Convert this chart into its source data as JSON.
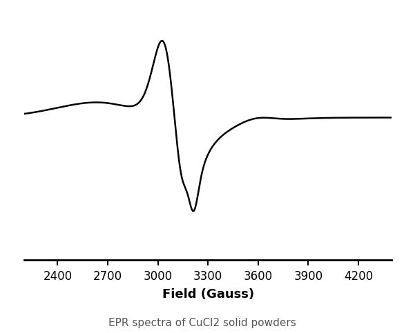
{
  "xlabel": "Field (Gauss)",
  "subtitle": "EPR spectra of CuCl2 solid powders",
  "xlim": [
    2200,
    4400
  ],
  "ylim": [
    -1.85,
    1.4
  ],
  "xticks": [
    2400,
    2700,
    3000,
    3300,
    3600,
    3900,
    4200
  ],
  "line_color": "#000000",
  "line_width": 1.8,
  "background_color": "#ffffff",
  "xlabel_fontsize": 13,
  "xlabel_fontweight": "bold",
  "xtick_fontsize": 12,
  "subtitle_fontsize": 11,
  "subtitle_color": "#555555"
}
